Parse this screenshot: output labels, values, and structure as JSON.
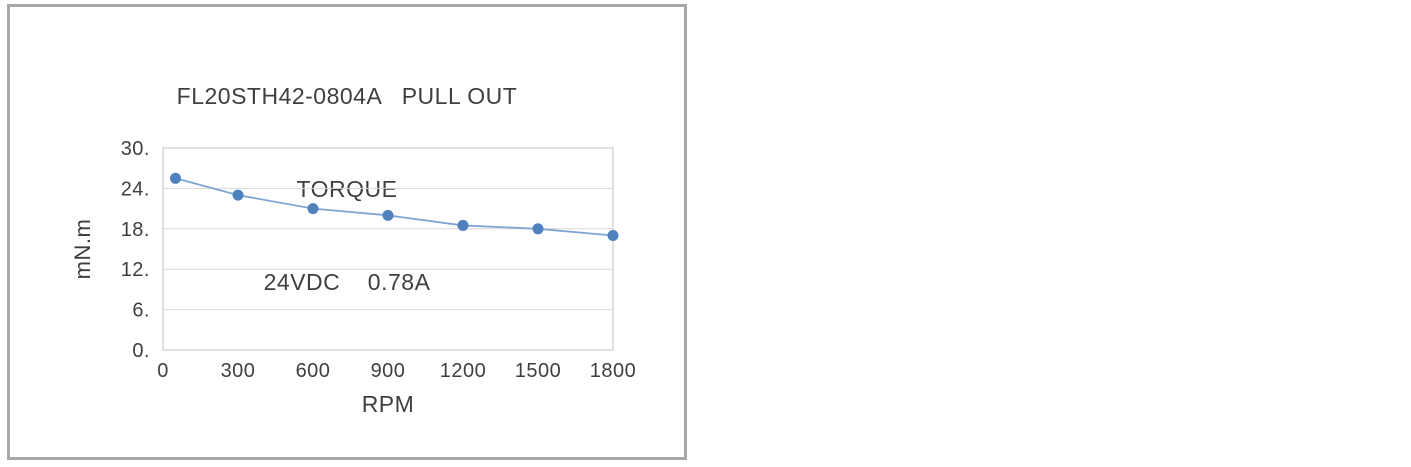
{
  "chart": {
    "title_lines": [
      "FL20STH42-0804A   PULL OUT",
      "TORQUE",
      "24VDC    0.78A"
    ]
  },
  "chart_data": {
    "type": "line",
    "title": "FL20STH42-0804A PULL OUT TORQUE 24VDC 0.78A",
    "series": [
      {
        "name": "Pull out torque",
        "x": [
          50,
          300,
          600,
          900,
          1200,
          1500,
          1800
        ],
        "values": [
          25.5,
          23,
          21,
          20,
          18.5,
          18,
          17
        ]
      }
    ],
    "xlabel": "RPM",
    "ylabel": "mN.m",
    "xlim": [
      0,
      1800
    ],
    "ylim": [
      0,
      30
    ],
    "xticks": [
      0,
      300,
      600,
      900,
      1200,
      1500,
      1800
    ],
    "xtick_labels": [
      "0",
      "300",
      "600",
      "900",
      "1200",
      "1500",
      "1800"
    ],
    "yticks": [
      0,
      6,
      12,
      18,
      24,
      30
    ],
    "ytick_labels": [
      "0.",
      "6.",
      "12.",
      "18.",
      "24.",
      "30."
    ],
    "grid": "horizontal",
    "legend": "none",
    "marker": true,
    "colors": {
      "line": "#7EA6D2",
      "marker": "#4F81BD",
      "gridline": "#D9D9D9",
      "plot_border": "#C3C3C3",
      "frame_border": "#A7A7AC",
      "text": "#3F3F3F"
    }
  }
}
